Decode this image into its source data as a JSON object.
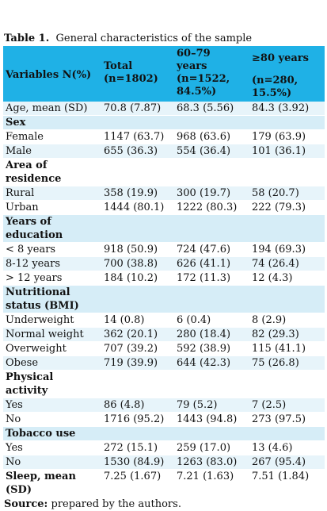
{
  "caption": {
    "label": "Table 1.",
    "text": "General characteristics of the sample"
  },
  "header": {
    "variables": "Variables N(%)",
    "total_line1": "Total",
    "total_line2": "(n=1802)",
    "g1_line1": "60–79",
    "g1_line2": "years",
    "g1_line3": "(n=1522,",
    "g1_line4": "84.5%)",
    "g2_line1": "≥80 years",
    "g2_line2": "(n=280,",
    "g2_line3": "15.5%)"
  },
  "rows": {
    "age": {
      "label": "Age, mean (SD)",
      "total": "70.8 (7.87)",
      "g1": "68.3 (5.56)",
      "g2": "84.3 (3.92)"
    },
    "sex": "Sex",
    "female": {
      "label": "Female",
      "total": "1147 (63.7)",
      "g1": "968 (63.6)",
      "g2": "179 (63.9)"
    },
    "male": {
      "label": "Male",
      "total": "655 (36.3)",
      "g1": "554 (36.4)",
      "g2": "101 (36.1)"
    },
    "area": "Area of residence",
    "rural": {
      "label": "Rural",
      "total": "358 (19.9)",
      "g1": "300 (19.7)",
      "g2": "58 (20.7)"
    },
    "urban": {
      "label": "Urban",
      "total": "1444 (80.1)",
      "g1": "1222 (80.3)",
      "g2": "222 (79.3)"
    },
    "education": "Years of education",
    "edu_lt8": {
      "label": "< 8 years",
      "total": "918 (50.9)",
      "g1": "724 (47.6)",
      "g2": "194 (69.3)"
    },
    "edu_8_12": {
      "label": "8-12 years",
      "total": "700 (38.8)",
      "g1": "626 (41.1)",
      "g2": "74 (26.4)"
    },
    "edu_gt12": {
      "label": "> 12 years",
      "total": "184 (10.2)",
      "g1": "172 (11.3)",
      "g2": "12 (4.3)"
    },
    "bmi": "Nutritional status (BMI)",
    "underweight": {
      "label": "Underweight",
      "total": "14 (0.8)",
      "g1": "6 (0.4)",
      "g2": "8 (2.9)"
    },
    "normal": {
      "label": "Normal weight",
      "total": "362 (20.1)",
      "g1": "280 (18.4)",
      "g2": "82 (29.3)"
    },
    "overweight": {
      "label": "Overweight",
      "total": "707 (39.2)",
      "g1": "592 (38.9)",
      "g2": "115 (41.1)"
    },
    "obese": {
      "label": "Obese",
      "total": "719 (39.9)",
      "g1": "644 (42.3)",
      "g2": "75 (26.8)"
    },
    "activity": "Physical activity",
    "act_yes": {
      "label": "Yes",
      "total": "86 (4.8)",
      "g1": "79 (5.2)",
      "g2": "7 (2.5)"
    },
    "act_no": {
      "label": "No",
      "total": "1716 (95.2)",
      "g1": "1443 (94.8)",
      "g2": "273 (97.5)"
    },
    "tobacco": "Tobacco use",
    "tob_yes": {
      "label": "Yes",
      "total": "272 (15.1)",
      "g1": "259 (17.0)",
      "g2": "13 (4.6)"
    },
    "tob_no": {
      "label": "No",
      "total": "1530 (84.9)",
      "g1": "1263 (83.0)",
      "g2": "267 (95.4)"
    },
    "sleep": {
      "label": "Sleep, mean (SD)",
      "total": "7.25 (1.67)",
      "g1": "7.21 (1.63)",
      "g2": "7.51 (1.84)"
    }
  },
  "source": {
    "label": "Source:",
    "text": "prepared by the authors."
  },
  "colors": {
    "header_bg": "#1fb1e6",
    "section_bg": "#d6edf7",
    "alt_row_bg": "#e7f4fa"
  }
}
